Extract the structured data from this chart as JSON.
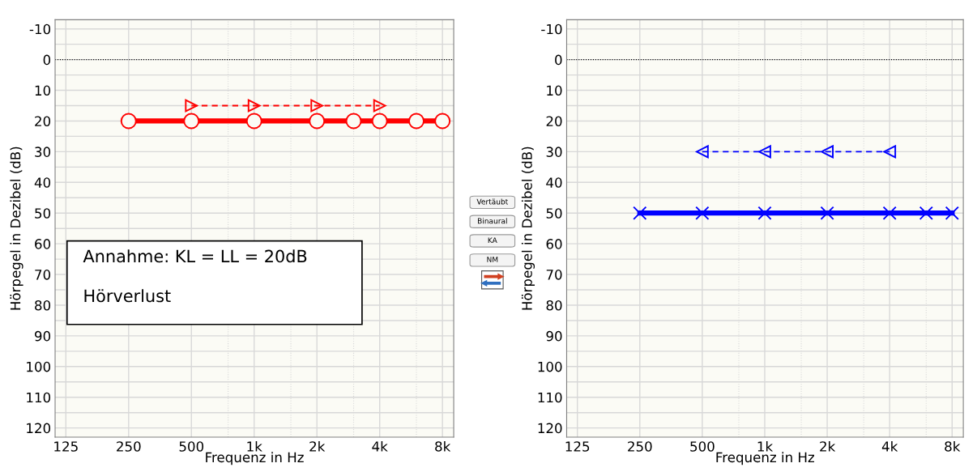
{
  "chart_data": [
    {
      "type": "line",
      "xlabel": "Frequenz in Hz",
      "ylabel": "Hörpegel in Dezibel (dB)",
      "xlim": [
        111,
        9060
      ],
      "ylim": [
        123,
        -13
      ],
      "log": "x",
      "grid": true,
      "legend": false,
      "xticks": [
        125,
        250,
        500,
        {
          "value": 750,
          "label": null
        },
        {
          "value": 1000,
          "label": "1k"
        },
        {
          "value": 1500,
          "label": null
        },
        {
          "value": 2000,
          "label": "2k"
        },
        {
          "value": 3000,
          "label": null
        },
        {
          "value": 4000,
          "label": "4k"
        },
        {
          "value": 6000,
          "label": null
        },
        {
          "value": 8000,
          "label": "8k"
        }
      ],
      "yticks": [
        -10,
        {
          "value": -5,
          "label": null
        },
        0,
        {
          "value": 5,
          "label": null
        },
        10,
        {
          "value": 15,
          "label": null
        },
        20,
        {
          "value": 25,
          "label": null
        },
        30,
        {
          "value": 35,
          "label": null
        },
        40,
        {
          "value": 45,
          "label": null
        },
        50,
        {
          "value": 55,
          "label": null
        },
        60,
        {
          "value": 65,
          "label": null
        },
        70,
        {
          "value": 75,
          "label": null
        },
        80,
        {
          "value": 85,
          "label": null
        },
        90,
        {
          "value": 95,
          "label": null
        },
        100,
        {
          "value": 105,
          "label": null
        },
        110,
        {
          "value": 115,
          "label": null
        },
        120
      ],
      "ref_lines": [
        {
          "axis": "y",
          "value": 0,
          "color": "#000000",
          "line_style": "dotted"
        }
      ],
      "series": [
        {
          "color": "#ff0000",
          "marker": "circle",
          "line_style": "solid",
          "x": [
            250,
            500,
            1000,
            2000,
            3000,
            4000,
            6000,
            8000
          ],
          "values": [
            20,
            20,
            20,
            20,
            20,
            20,
            20,
            20
          ]
        },
        {
          "color": "#ff0000",
          "marker": "triangle",
          "line_style": "dashed",
          "x": [
            500,
            1000,
            2000,
            4000
          ],
          "values": [
            15,
            15,
            15,
            15
          ]
        }
      ],
      "annotations": [
        "Annahme: KL = LL = 20dB",
        "Hörverlust",
        "Vertäubt",
        "Binaural",
        "KA",
        "NM"
      ]
    },
    {
      "type": "line",
      "xlabel": "Frequenz in Hz",
      "ylabel": "Hörpegel in Dezibel (dB)",
      "xlim": [
        111,
        9060
      ],
      "ylim": [
        123,
        -13
      ],
      "log": "x",
      "grid": true,
      "legend": false,
      "xticks": [
        125,
        250,
        500,
        {
          "value": 750,
          "label": null
        },
        {
          "value": 1000,
          "label": "1k"
        },
        {
          "value": 1500,
          "label": null
        },
        {
          "value": 2000,
          "label": "2k"
        },
        {
          "value": 3000,
          "label": null
        },
        {
          "value": 4000,
          "label": "4k"
        },
        {
          "value": 6000,
          "label": null
        },
        {
          "value": 8000,
          "label": "8k"
        }
      ],
      "yticks": [
        -10,
        {
          "value": -5,
          "label": null
        },
        0,
        {
          "value": 5,
          "label": null
        },
        10,
        {
          "value": 15,
          "label": null
        },
        20,
        {
          "value": 25,
          "label": null
        },
        30,
        {
          "value": 35,
          "label": null
        },
        40,
        {
          "value": 45,
          "label": null
        },
        50,
        {
          "value": 55,
          "label": null
        },
        60,
        {
          "value": 65,
          "label": null
        },
        70,
        {
          "value": 75,
          "label": null
        },
        80,
        {
          "value": 85,
          "label": null
        },
        90,
        {
          "value": 95,
          "label": null
        },
        100,
        {
          "value": 105,
          "label": null
        },
        110,
        {
          "value": 115,
          "label": null
        },
        120
      ],
      "ref_lines": [
        {
          "axis": "y",
          "value": 0,
          "color": "#000000",
          "line_style": "dotted"
        }
      ],
      "series": [
        {
          "color": "#0000ff",
          "marker": "cross",
          "line_style": "solid",
          "x": [
            250,
            500,
            1000,
            2000,
            4000,
            6000,
            8000
          ],
          "values": [
            50,
            50,
            50,
            50,
            50,
            50,
            50
          ]
        },
        {
          "color": "#0000ff",
          "marker": "triangle",
          "line_style": "dashed",
          "x": [
            500,
            1000,
            2000,
            4000
          ],
          "values": [
            30,
            30,
            30,
            30
          ]
        }
      ]
    }
  ]
}
